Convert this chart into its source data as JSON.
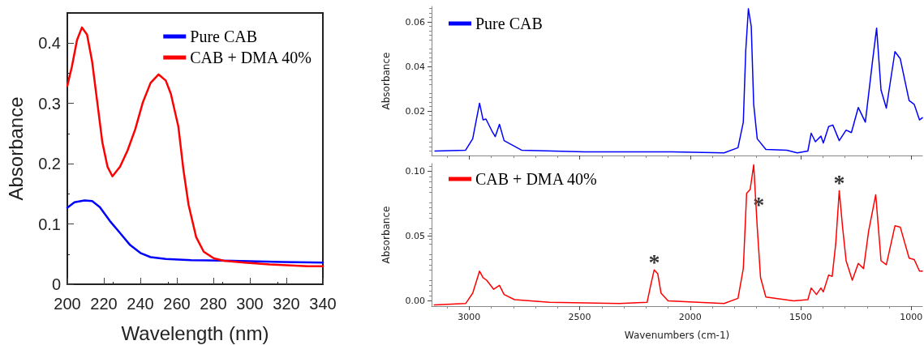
{
  "chart_data": [
    {
      "type": "line",
      "xlabel": "Wavelength (nm)",
      "ylabel": "Absorbance",
      "xlim": [
        200,
        340
      ],
      "xticks": [
        200,
        220,
        240,
        260,
        280,
        300,
        320,
        340
      ],
      "ylim": [
        0,
        0.45
      ],
      "yticks": [
        0,
        0.1,
        0.2,
        0.3,
        0.4
      ],
      "legend": "top right",
      "marker": "none",
      "line_style": "solid",
      "grid": false,
      "series": [
        {
          "name": "Pure CAB",
          "color": "#0000ff",
          "x": [
            200,
            203.9,
            209.4,
            213.6,
            217.8,
            223.3,
            228.9,
            234.4,
            240,
            245.6,
            253.9,
            267.8,
            290,
            317.8,
            340
          ],
          "values": [
            0.127,
            0.136,
            0.139,
            0.138,
            0.128,
            0.105,
            0.085,
            0.065,
            0.052,
            0.045,
            0.042,
            0.04,
            0.039,
            0.037,
            0.036
          ]
        },
        {
          "name": "CAB + DMA 40%",
          "color": "#ff0000",
          "x": [
            200,
            202.5,
            205.3,
            208,
            210.8,
            213.6,
            216.4,
            219.2,
            222,
            224.7,
            228.9,
            233,
            237.2,
            241.4,
            245.6,
            250,
            253.9,
            256.7,
            260.8,
            263.6,
            266.4,
            270.6,
            274.7,
            280.3,
            285.8,
            297,
            310.8,
            331.7,
            340
          ],
          "values": [
            0.329,
            0.361,
            0.405,
            0.426,
            0.414,
            0.369,
            0.302,
            0.235,
            0.195,
            0.179,
            0.195,
            0.222,
            0.257,
            0.302,
            0.334,
            0.348,
            0.338,
            0.316,
            0.262,
            0.19,
            0.132,
            0.078,
            0.054,
            0.043,
            0.039,
            0.036,
            0.033,
            0.03,
            0.03
          ]
        }
      ]
    },
    {
      "type": "line",
      "ylabel": "Absorbance",
      "xlim": [
        3170,
        950
      ],
      "xticks": [
        3000,
        2500,
        2000,
        1500,
        1000
      ],
      "ylim": [
        0,
        0.067
      ],
      "yticks": [
        0.02,
        0.04,
        0.06
      ],
      "tick_labels": "y",
      "legend": "top left",
      "marker": "none",
      "line_style": "solid",
      "grid": false,
      "series": [
        {
          "name": "Pure CAB",
          "color": "#0000ff",
          "x": [
            3155,
            3016,
            2984,
            2953,
            2937,
            2924,
            2897,
            2882,
            2863,
            2842,
            2763,
            2479,
            2084,
            1847,
            1784,
            1760,
            1749,
            1737,
            1724,
            1713,
            1697,
            1658,
            1563,
            1516,
            1468,
            1453,
            1434,
            1409,
            1398,
            1374,
            1355,
            1326,
            1295,
            1271,
            1240,
            1208,
            1176,
            1157,
            1137,
            1113,
            1074,
            1050,
            1010,
            987,
            963,
            950
          ],
          "values": [
            0.002,
            0.0024,
            0.0075,
            0.0235,
            0.016,
            0.0164,
            0.011,
            0.0085,
            0.014,
            0.0067,
            0.0024,
            0.0016,
            0.0016,
            0.0012,
            0.0035,
            0.015,
            0.047,
            0.066,
            0.058,
            0.023,
            0.0075,
            0.0027,
            0.0024,
            0.0012,
            0.002,
            0.01,
            0.0062,
            0.0087,
            0.0056,
            0.013,
            0.0137,
            0.0067,
            0.0114,
            0.0103,
            0.0216,
            0.015,
            0.042,
            0.0573,
            0.0294,
            0.0213,
            0.0467,
            0.0435,
            0.0247,
            0.023,
            0.016,
            0.017
          ]
        }
      ]
    },
    {
      "type": "line",
      "xlabel": "Wavenumbers (cm-1)",
      "ylabel": "Absorbance",
      "xlim": [
        3170,
        950
      ],
      "xticks": [
        3000,
        2500,
        2000,
        1500,
        1000
      ],
      "ylim": [
        -0.004,
        0.106
      ],
      "yticks": [
        {
          "value": 0,
          "label": "0.00"
        },
        0.05,
        {
          "value": 0.1,
          "label": "0.10"
        }
      ],
      "legend": "top left",
      "marker": "none",
      "line_style": "solid",
      "grid": false,
      "annotations": [
        {
          "text": "*",
          "x": 2163,
          "y": 0.024
        },
        {
          "text": "*",
          "x": 1712,
          "y": 0.078
        },
        {
          "text": "*",
          "x": 1326,
          "y": 0.085
        }
      ],
      "series": [
        {
          "name": "CAB + DMA 40%",
          "color": "#ff0000",
          "x": [
            3158,
            3016,
            2984,
            2953,
            2937,
            2921,
            2889,
            2863,
            2842,
            2795,
            2637,
            2321,
            2195,
            2179,
            2163,
            2147,
            2132,
            2100,
            1847,
            1784,
            1760,
            1745,
            1729,
            1713,
            1697,
            1682,
            1658,
            1532,
            1468,
            1453,
            1429,
            1409,
            1398,
            1374,
            1358,
            1342,
            1326,
            1311,
            1295,
            1267,
            1240,
            1216,
            1193,
            1161,
            1137,
            1113,
            1074,
            1050,
            1010,
            987,
            963,
            950
          ],
          "values": [
            -0.003,
            -0.002,
            0.006,
            0.023,
            0.018,
            0.016,
            0.009,
            0.012,
            0.005,
            0.001,
            -0.001,
            -0.002,
            -0.001,
            0.012,
            0.024,
            0.021,
            0.006,
            0.0,
            -0.002,
            0.002,
            0.025,
            0.083,
            0.086,
            0.105,
            0.057,
            0.018,
            0.003,
            0.0,
            0.001,
            0.01,
            0.005,
            0.01,
            0.007,
            0.02,
            0.019,
            0.044,
            0.085,
            0.057,
            0.031,
            0.016,
            0.029,
            0.025,
            0.054,
            0.082,
            0.031,
            0.028,
            0.058,
            0.057,
            0.033,
            0.032,
            0.023,
            0.023
          ]
        }
      ]
    }
  ]
}
